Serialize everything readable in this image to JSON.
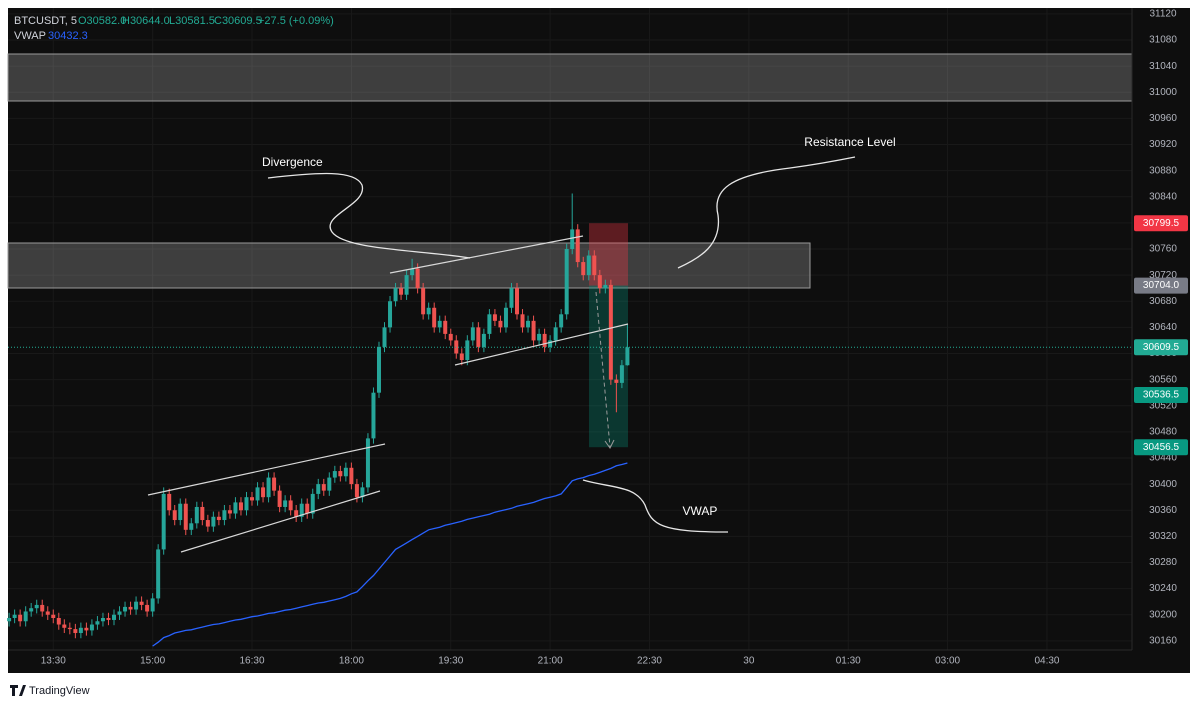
{
  "chart_data": {
    "type": "candlestick",
    "header": {
      "symbol": "BTCUSDT, 5",
      "open": "O30582.0",
      "high": "H30644.0",
      "low": "L30581.5",
      "close": "C30609.5",
      "change": "+27.5 (+0.09%)",
      "vwap_label": "30432.3"
    },
    "annotations": [
      "Divergence",
      "Resistance Level",
      "VWAP"
    ],
    "brand": "TradingView",
    "xlim": [
      769,
      1787
    ],
    "ylim": [
      30146,
      31129
    ],
    "grid": true,
    "up_color": "#26a69a",
    "down_color": "#ef5350",
    "yticks": [
      31120,
      31080,
      31040,
      31000,
      30960,
      30920,
      30880,
      30840,
      30800,
      30760,
      30720,
      30680,
      30640,
      30600,
      30560,
      30520,
      30480,
      30440,
      30400,
      30360,
      30320,
      30280,
      30240,
      30200,
      30160
    ],
    "xticks": [
      {
        "value": 810,
        "label": "13:30"
      },
      {
        "value": 900,
        "label": "15:00"
      },
      {
        "value": 990,
        "label": "16:30"
      },
      {
        "value": 1080,
        "label": "18:00"
      },
      {
        "value": 1170,
        "label": "19:30"
      },
      {
        "value": 1260,
        "label": "21:00"
      },
      {
        "value": 1350,
        "label": "22:30"
      },
      {
        "value": 1440,
        "label": "30"
      },
      {
        "value": 1530,
        "label": "01:30"
      },
      {
        "value": 1620,
        "label": "03:00"
      },
      {
        "value": 1710,
        "label": "04:30"
      }
    ],
    "price_tags": [
      {
        "value": 30799.5,
        "label": "30799.5",
        "color": "#f23645"
      },
      {
        "value": 30704,
        "label": "30704.0",
        "color": "#787b86"
      },
      {
        "value": 30609.5,
        "label": "30609.5",
        "color": "#22ab94"
      },
      {
        "value": 30536.5,
        "label": "30536.5",
        "color": "#089981"
      },
      {
        "value": 30456.5,
        "label": "30456.5",
        "color": "#089981"
      }
    ],
    "x": [
      770,
      775,
      780,
      785,
      790,
      795,
      800,
      805,
      810,
      815,
      820,
      825,
      830,
      835,
      840,
      845,
      850,
      855,
      860,
      865,
      870,
      875,
      880,
      885,
      890,
      895,
      900,
      905,
      910,
      915,
      920,
      925,
      930,
      935,
      940,
      945,
      950,
      955,
      960,
      965,
      970,
      975,
      980,
      985,
      990,
      995,
      1000,
      1005,
      1010,
      1015,
      1020,
      1025,
      1030,
      1035,
      1040,
      1045,
      1050,
      1055,
      1060,
      1065,
      1070,
      1075,
      1080,
      1085,
      1090,
      1095,
      1100,
      1105,
      1110,
      1115,
      1120,
      1125,
      1130,
      1135,
      1140,
      1145,
      1150,
      1155,
      1160,
      1165,
      1170,
      1175,
      1180,
      1185,
      1190,
      1195,
      1200,
      1205,
      1210,
      1215,
      1220,
      1225,
      1230,
      1235,
      1240,
      1245,
      1250,
      1255,
      1260,
      1265,
      1270,
      1275,
      1280,
      1285,
      1290,
      1295,
      1300,
      1305,
      1310,
      1315,
      1320,
      1325,
      1330
    ],
    "open": [
      30190,
      30195,
      30200,
      30190,
      30205,
      30210,
      30215,
      30205,
      30200,
      30195,
      30185,
      30180,
      30178,
      30172,
      30180,
      30176,
      30185,
      30190,
      30195,
      30192,
      30200,
      30205,
      30212,
      30208,
      30220,
      30215,
      30205,
      30225,
      30300,
      30385,
      30360,
      30345,
      30370,
      30330,
      30340,
      30365,
      30345,
      30335,
      30350,
      30345,
      30360,
      30355,
      30372,
      30360,
      30380,
      30375,
      30395,
      30380,
      30410,
      30390,
      30365,
      30375,
      30360,
      30350,
      30370,
      30355,
      30385,
      30400,
      30390,
      30410,
      30420,
      30412,
      30425,
      30400,
      30380,
      30395,
      30470,
      30540,
      30610,
      30640,
      30680,
      30700,
      30690,
      30720,
      30730,
      30700,
      30660,
      30670,
      30640,
      30650,
      30630,
      30620,
      30600,
      30590,
      30620,
      30640,
      30610,
      30630,
      30660,
      30650,
      30640,
      30670,
      30700,
      30660,
      30640,
      30650,
      30620,
      30630,
      30610,
      30620,
      30640,
      30660,
      30760,
      30790,
      30740,
      30720,
      30750,
      30720,
      30700,
      30705,
      30560,
      30555,
      30582
    ],
    "high": [
      30203,
      30208,
      30208,
      30213,
      30218,
      30223,
      30223,
      30213,
      30208,
      30203,
      30193,
      30188,
      30186,
      30188,
      30188,
      30193,
      30198,
      30203,
      30203,
      30208,
      30213,
      30220,
      30220,
      30228,
      30228,
      30223,
      30233,
      30308,
      30395,
      30393,
      30368,
      30378,
      30378,
      30348,
      30373,
      30373,
      30353,
      30358,
      30358,
      30368,
      30368,
      30380,
      30380,
      30388,
      30388,
      30403,
      30403,
      30418,
      30418,
      30398,
      30383,
      30383,
      30368,
      30378,
      30378,
      30393,
      30408,
      30408,
      30418,
      30428,
      30428,
      30433,
      30433,
      30408,
      30403,
      30478,
      30548,
      30618,
      30648,
      30688,
      30708,
      30708,
      30728,
      30745,
      30738,
      30708,
      30678,
      30678,
      30658,
      30658,
      30638,
      30628,
      30608,
      30628,
      30648,
      30648,
      30638,
      30668,
      30668,
      30658,
      30678,
      30708,
      30708,
      30668,
      30658,
      30658,
      30638,
      30638,
      30628,
      30648,
      30668,
      30768,
      30845,
      30798,
      30748,
      30758,
      30758,
      30728,
      30713,
      30713,
      30568,
      30590,
      30644
    ],
    "low": [
      30182,
      30187,
      30182,
      30182,
      30197,
      30202,
      30197,
      30192,
      30187,
      30177,
      30172,
      30170,
      30164,
      30164,
      30168,
      30168,
      30177,
      30182,
      30184,
      30184,
      30192,
      30197,
      30200,
      30200,
      30207,
      30197,
      30197,
      30217,
      30292,
      30352,
      30337,
      30337,
      30322,
      30322,
      30332,
      30337,
      30327,
      30327,
      30337,
      30337,
      30347,
      30347,
      30352,
      30352,
      30367,
      30367,
      30372,
      30372,
      30382,
      30357,
      30357,
      30352,
      30342,
      30342,
      30347,
      30347,
      30377,
      30382,
      30382,
      30402,
      30404,
      30404,
      30392,
      30372,
      30372,
      30387,
      30462,
      30532,
      30602,
      30632,
      30672,
      30682,
      30682,
      30712,
      30692,
      30652,
      30652,
      30632,
      30632,
      30622,
      30612,
      30592,
      30582,
      30582,
      30612,
      30602,
      30602,
      30622,
      30642,
      30632,
      30632,
      30662,
      30652,
      30632,
      30632,
      30612,
      30612,
      30602,
      30602,
      30612,
      30632,
      30652,
      30752,
      30732,
      30712,
      30712,
      30712,
      30692,
      30692,
      30552,
      30510,
      30547,
      30581.5
    ],
    "close": [
      30195,
      30200,
      30190,
      30205,
      30210,
      30215,
      30205,
      30200,
      30195,
      30185,
      30180,
      30178,
      30172,
      30180,
      30176,
      30185,
      30190,
      30195,
      30192,
      30200,
      30205,
      30212,
      30208,
      30220,
      30215,
      30205,
      30225,
      30300,
      30385,
      30360,
      30345,
      30370,
      30330,
      30340,
      30365,
      30345,
      30335,
      30350,
      30345,
      30360,
      30355,
      30372,
      30360,
      30380,
      30375,
      30395,
      30380,
      30410,
      30390,
      30365,
      30375,
      30360,
      30350,
      30370,
      30355,
      30385,
      30400,
      30390,
      30410,
      30420,
      30412,
      30425,
      30400,
      30380,
      30395,
      30470,
      30540,
      30610,
      30640,
      30680,
      30700,
      30690,
      30720,
      30730,
      30700,
      30660,
      30670,
      30640,
      30650,
      30630,
      30620,
      30600,
      30590,
      30620,
      30640,
      30610,
      30630,
      30660,
      30650,
      30640,
      30670,
      30700,
      30660,
      30640,
      30650,
      30620,
      30630,
      30610,
      30620,
      30640,
      30660,
      30760,
      30790,
      30740,
      30720,
      30750,
      30720,
      30700,
      30705,
      30560,
      30555,
      30582,
      30609.5
    ],
    "series": [
      {
        "name": "VWAP",
        "color": "#2962ff",
        "values": [
          null,
          null,
          null,
          null,
          null,
          null,
          null,
          null,
          null,
          null,
          null,
          null,
          null,
          null,
          null,
          null,
          null,
          null,
          null,
          null,
          null,
          null,
          null,
          null,
          null,
          null,
          30152,
          30158,
          30165,
          30168,
          30172,
          30174,
          30176,
          30177,
          30179,
          30181,
          30183,
          30185,
          30186,
          30188,
          30190,
          30192,
          30193,
          30195,
          30197,
          30198,
          30200,
          30202,
          30203,
          30205,
          30207,
          30208,
          30210,
          30212,
          30214,
          30216,
          30218,
          30219,
          30221,
          30223,
          30225,
          30228,
          30232,
          30235,
          30243,
          30252,
          30260,
          30270,
          30280,
          30290,
          30300,
          30305,
          30310,
          30315,
          30320,
          30325,
          30330,
          30332,
          30334,
          30337,
          30339,
          30341,
          30343,
          30346,
          30348,
          30350,
          30352,
          30354,
          30357,
          30359,
          30361,
          30363,
          30366,
          30368,
          30370,
          30372,
          30375,
          30378,
          30380,
          30382,
          30385,
          30395,
          30405,
          30408,
          30410,
          30413,
          30415,
          30418,
          30421,
          30424,
          30428,
          30430,
          30432.3
        ]
      }
    ]
  }
}
